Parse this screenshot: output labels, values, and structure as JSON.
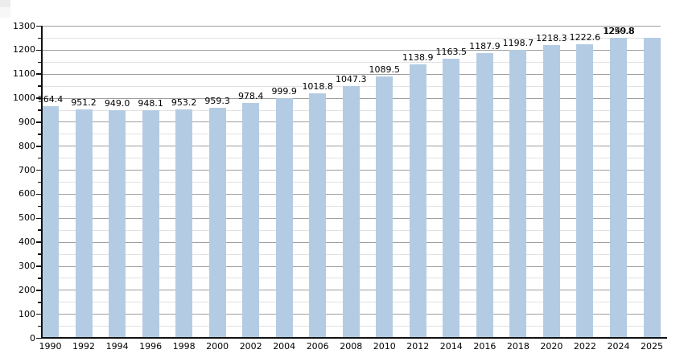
{
  "chart_data": {
    "type": "bar",
    "title": "",
    "xlabel": "",
    "ylabel": "",
    "categories": [
      "1990",
      "1992",
      "1994",
      "1996",
      "1998",
      "2000",
      "2002",
      "2004",
      "2006",
      "2008",
      "2010",
      "2012",
      "2014",
      "2016",
      "2018",
      "2020",
      "2022",
      "2024",
      "2025"
    ],
    "values": [
      964.4,
      951.2,
      949.0,
      948.1,
      953.2,
      959.3,
      978.4,
      999.9,
      1018.8,
      1047.3,
      1089.5,
      1138.9,
      1163.5,
      1187.9,
      1198.7,
      1218.3,
      1222.6,
      1250.8,
      1249.8
    ],
    "bar_value_labels": [
      "964.4",
      "951.2",
      "949.0",
      "948.1",
      "953.2",
      "959.3",
      "978.4",
      "999.9",
      "1018.8",
      "1047.3",
      "1089.5",
      "1138.9",
      "1163.5",
      "1187.9",
      "1198.7",
      "1218.3",
      "1222.6",
      "1250.8",
      ""
    ],
    "overlapping_extra_label": {
      "text": "1249.8",
      "over_category": "2024",
      "dx": 1,
      "dy": 0
    },
    "ylim": [
      0,
      1300
    ],
    "y_major_step": 100,
    "y_minor_step": 50,
    "y_tick_labels": [
      "0",
      "100",
      "200",
      "300",
      "400",
      "500",
      "600",
      "700",
      "800",
      "900",
      "1000",
      "1100",
      "1200",
      "1300"
    ],
    "grid": true,
    "legend": false,
    "colors": {
      "bar": "#b4cce3",
      "major_grid": "#9f9f9f",
      "minor_grid": "#e2e2e2",
      "axis": "#111111",
      "text": "#000000",
      "background": "#ffffff"
    }
  }
}
